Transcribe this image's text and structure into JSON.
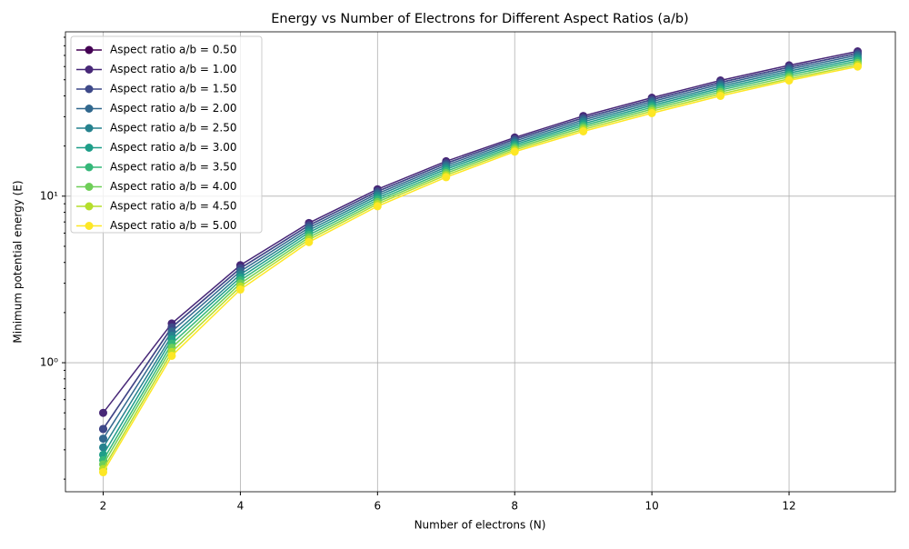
{
  "chart_data": {
    "type": "line",
    "title": "Energy vs Number of Electrons for Different Aspect Ratios (a/b)",
    "xlabel": "Number of electrons (N)",
    "ylabel": "Minimum potential energy (E)",
    "x": [
      2,
      3,
      4,
      5,
      6,
      7,
      8,
      9,
      10,
      11,
      12,
      13
    ],
    "xlim": [
      1.45,
      13.55
    ],
    "xticks": [
      2,
      4,
      6,
      8,
      10,
      12
    ],
    "ylim": [
      0.168,
      97
    ],
    "log_y": true,
    "yticks": [
      {
        "value": 1,
        "label": "10⁰"
      },
      {
        "value": 10,
        "label": "10¹"
      }
    ],
    "yminorticks": [
      0.2,
      0.3,
      0.4,
      0.5,
      0.6,
      0.7,
      0.8,
      0.9,
      2,
      3,
      4,
      5,
      6,
      7,
      8,
      9,
      20,
      30,
      40,
      50,
      60,
      70,
      80,
      90
    ],
    "grid": true,
    "legend": "upper left",
    "series": [
      {
        "name": "Aspect ratio a/b = 0.50",
        "color": "#440154",
        "values": [
          0.4,
          1.63,
          3.69,
          6.68,
          10.68,
          15.76,
          21.96,
          29.51,
          37.99,
          48.21,
          59.41,
          72.08
        ]
      },
      {
        "name": "Aspect ratio a/b = 1.00",
        "color": "#482878",
        "values": [
          0.5,
          1.72,
          3.85,
          6.9,
          11,
          16.2,
          22.5,
          30.3,
          39,
          49.5,
          61,
          74
        ]
      },
      {
        "name": "Aspect ratio a/b = 1.50",
        "color": "#3e4989",
        "values": [
          0.4,
          1.63,
          3.69,
          6.68,
          10.68,
          15.76,
          21.96,
          29.51,
          37.99,
          48.21,
          59.41,
          72.08
        ]
      },
      {
        "name": "Aspect ratio a/b = 2.00",
        "color": "#31688e",
        "values": [
          0.35,
          1.54,
          3.54,
          6.46,
          10.37,
          15.33,
          21.42,
          28.72,
          36.97,
          46.93,
          57.83,
          70.15
        ]
      },
      {
        "name": "Aspect ratio a/b = 2.50",
        "color": "#26828e",
        "values": [
          0.31,
          1.45,
          3.39,
          6.25,
          10.08,
          14.92,
          20.9,
          27.97,
          36.0,
          45.69,
          56.3,
          68.3
        ]
      },
      {
        "name": "Aspect ratio a/b = 3.00",
        "color": "#1f9e89",
        "values": [
          0.28,
          1.38,
          3.25,
          6.05,
          9.78,
          14.52,
          20.41,
          27.24,
          35.06,
          44.5,
          54.84,
          66.53
        ]
      },
      {
        "name": "Aspect ratio a/b = 3.50",
        "color": "#35b779",
        "values": [
          0.26,
          1.3,
          3.12,
          5.85,
          9.5,
          14.11,
          19.91,
          26.54,
          34.16,
          43.36,
          53.44,
          64.82
        ]
      },
      {
        "name": "Aspect ratio a/b = 4.00",
        "color": "#6ece58",
        "values": [
          0.245,
          1.23,
          2.99,
          5.66,
          9.23,
          13.74,
          19.42,
          25.85,
          33.27,
          42.22,
          52.03,
          63.12
        ]
      },
      {
        "name": "Aspect ratio a/b = 4.50",
        "color": "#b5de2b",
        "values": [
          0.23,
          1.16,
          2.87,
          5.48,
          8.97,
          13.37,
          18.95,
          25.15,
          32.37,
          41.09,
          50.63,
          61.42
        ]
      },
      {
        "name": "Aspect ratio a/b = 5.00",
        "color": "#fde725",
        "values": [
          0.22,
          1.1,
          2.75,
          5.3,
          8.7,
          13.0,
          18.5,
          24.5,
          31.5,
          40,
          49.5,
          60
        ]
      }
    ]
  }
}
